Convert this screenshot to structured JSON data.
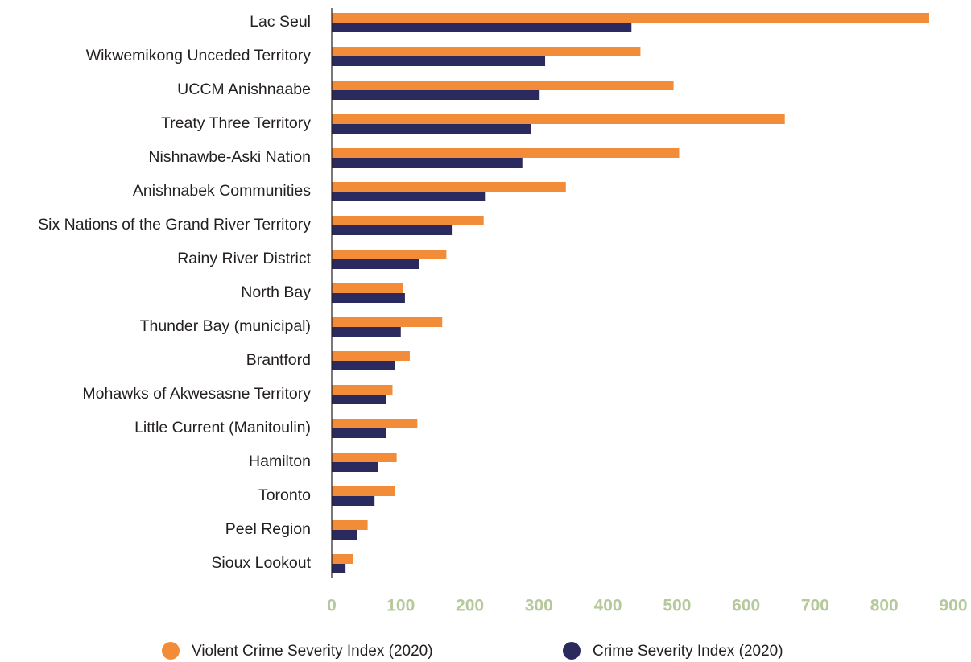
{
  "chart_data": {
    "type": "hbar",
    "categories": [
      "Lac Seul",
      "Wikwemikong Unceded Territory",
      "UCCM Anishnaabe",
      "Treaty Three Territory",
      "Nishnawbe-Aski Nation",
      "Anishnabek Communities",
      "Six Nations of the Grand River Territory",
      "Rainy River District",
      "North Bay",
      "Thunder Bay (municipal)",
      "Brantford",
      "Mohawks of Akwesasne Territory",
      "Little Current (Manitoulin)",
      "Hamilton",
      "Toronto",
      "Peel Region",
      "Sioux Lookout"
    ],
    "series": [
      {
        "name": "Violent Crime Severity Index (2020)",
        "color": "#f28c38",
        "values": [
          865,
          447,
          495,
          656,
          503,
          339,
          220,
          166,
          103,
          160,
          113,
          88,
          124,
          94,
          92,
          52,
          31
        ]
      },
      {
        "name": "Crime Severity Index (2020)",
        "color": "#2b2a5e",
        "values": [
          434,
          309,
          301,
          288,
          276,
          223,
          175,
          127,
          106,
          100,
          92,
          79,
          79,
          67,
          62,
          37,
          20
        ]
      }
    ],
    "xlim": [
      0,
      900
    ],
    "xticks": [
      0,
      100,
      200,
      300,
      400,
      500,
      600,
      700,
      800,
      900
    ],
    "tick_color": "#b5c99a",
    "legend": "bottom"
  }
}
